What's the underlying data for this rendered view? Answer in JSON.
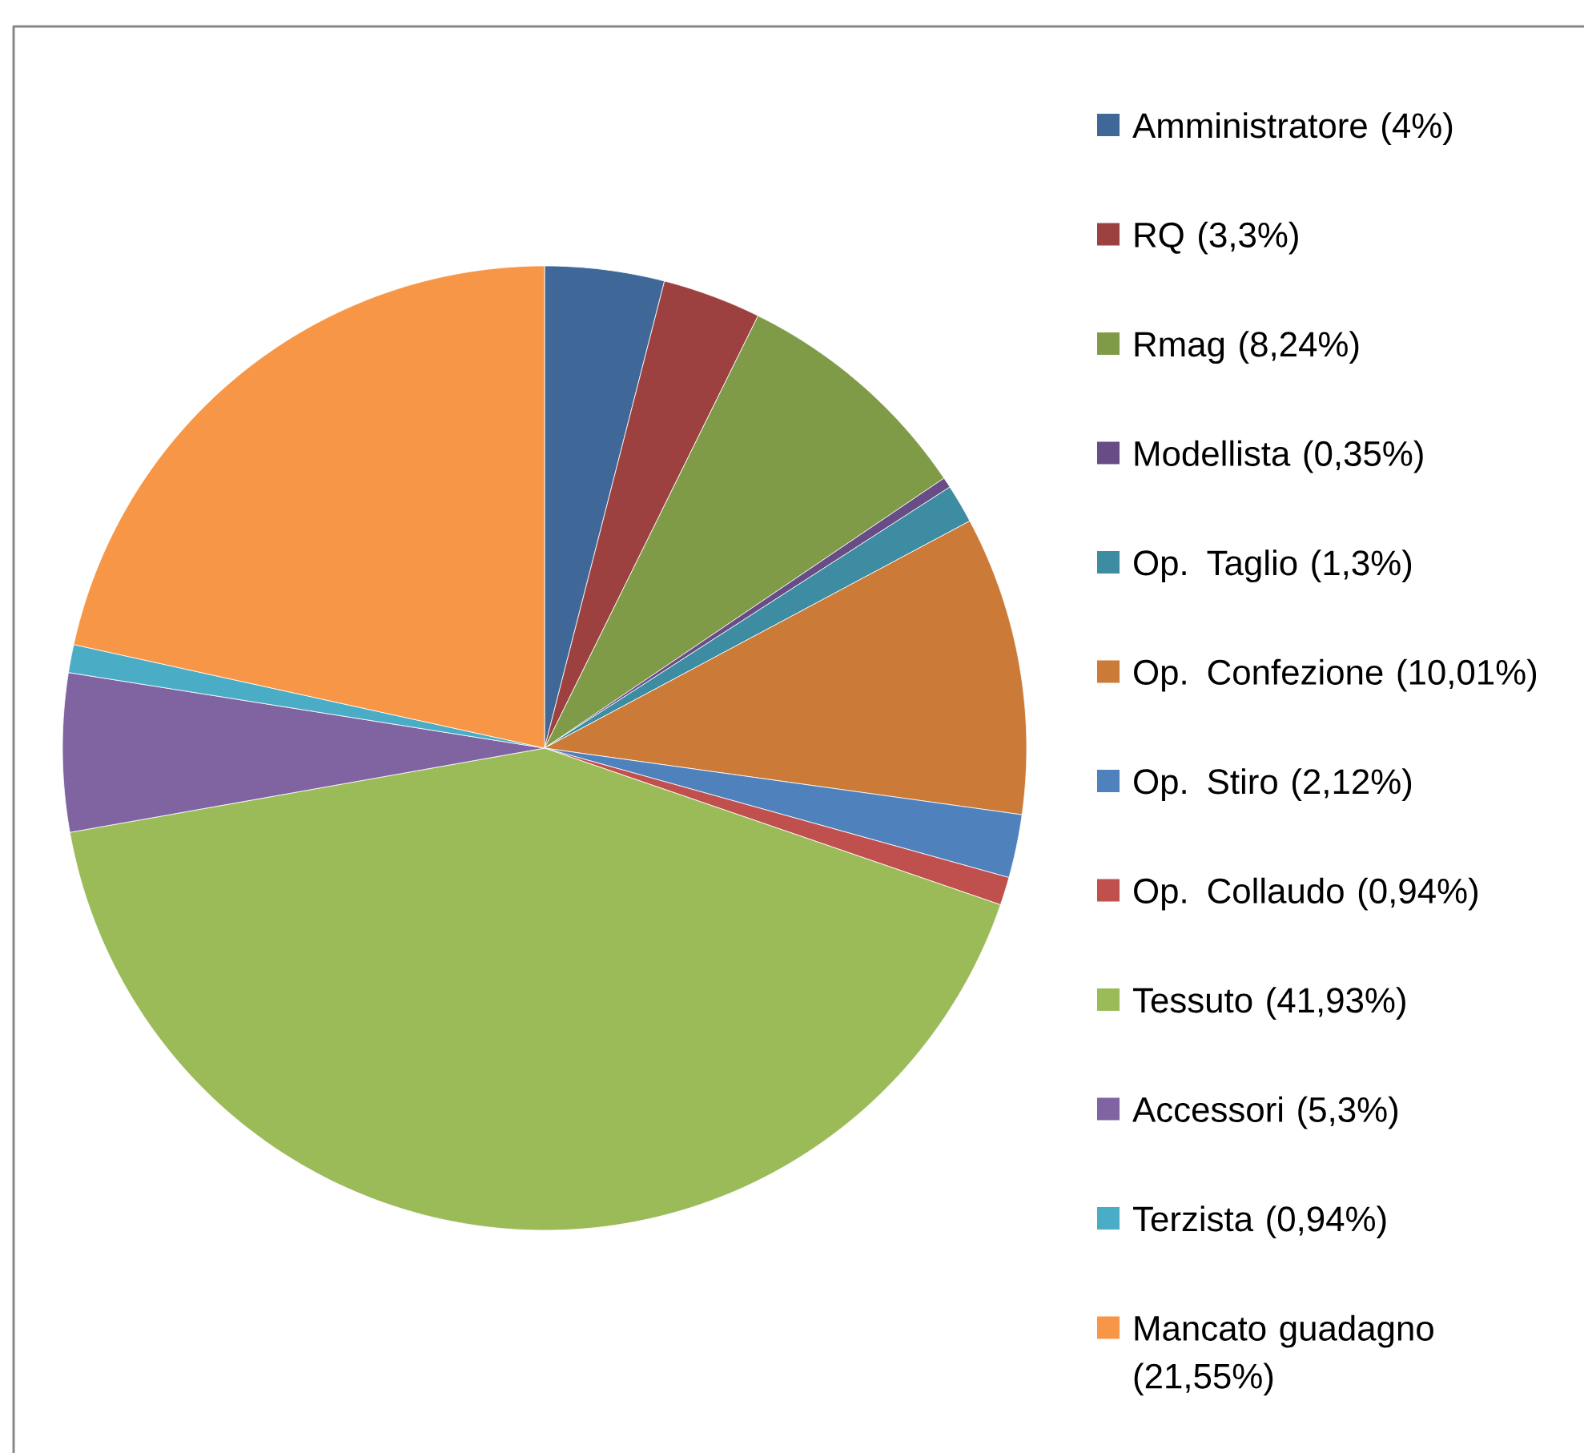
{
  "chart_data": {
    "type": "pie",
    "categories": [
      "Amministratore (4%)",
      "RQ (3,3%)",
      "Rmag (8,24%)",
      "Modellista (0,35%)",
      "Op. Taglio (1,3%)",
      "Op. Confezione (10,01%)",
      "Op. Stiro (2,12%)",
      "Op. Collaudo (0,94%)",
      "Tessuto (41,93%)",
      "Accessori (5,3%)",
      "Terzista (0,94%)",
      "Mancato guadagno (21,55%)"
    ],
    "values": [
      4,
      3.3,
      8.24,
      0.35,
      1.3,
      10.01,
      2.12,
      0.94,
      41.93,
      5.3,
      0.94,
      21.55
    ],
    "colors": [
      "#3f6899",
      "#9c413f",
      "#809b48",
      "#684c86",
      "#3d8ca1",
      "#cb7a37",
      "#4f81bd",
      "#c0504d",
      "#9bbb59",
      "#8064a2",
      "#4bacc6",
      "#f79646"
    ],
    "legend": "right"
  }
}
